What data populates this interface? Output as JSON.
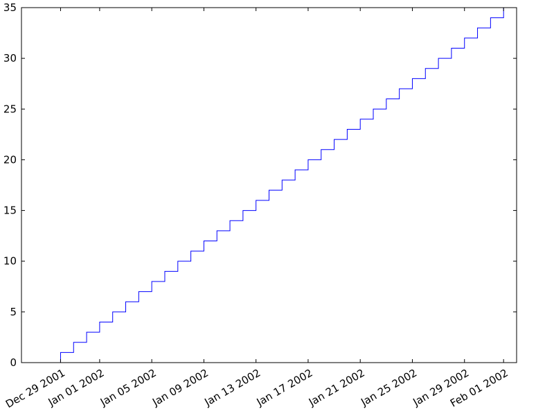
{
  "chart_data": {
    "type": "line",
    "step": "post",
    "xlabel": "",
    "ylabel": "",
    "title": "",
    "x_axis_type": "date",
    "xlim": [
      "2001-12-26",
      "2002-02-02"
    ],
    "ylim": [
      0,
      35
    ],
    "grid": false,
    "legend": "none",
    "line_color": "#0000ff",
    "x_ticks": [
      {
        "date": "2001-12-29",
        "label": "Dec 29 2001"
      },
      {
        "date": "2002-01-01",
        "label": "Jan 01 2002"
      },
      {
        "date": "2002-01-05",
        "label": "Jan 05 2002"
      },
      {
        "date": "2002-01-09",
        "label": "Jan 09 2002"
      },
      {
        "date": "2002-01-13",
        "label": "Jan 13 2002"
      },
      {
        "date": "2002-01-17",
        "label": "Jan 17 2002"
      },
      {
        "date": "2002-01-21",
        "label": "Jan 21 2002"
      },
      {
        "date": "2002-01-25",
        "label": "Jan 25 2002"
      },
      {
        "date": "2002-01-29",
        "label": "Jan 29 2002"
      },
      {
        "date": "2002-02-01",
        "label": "Feb 01 2002"
      }
    ],
    "y_ticks": [
      {
        "value": 0,
        "label": "0"
      },
      {
        "value": 5,
        "label": "5"
      },
      {
        "value": 10,
        "label": "10"
      },
      {
        "value": 15,
        "label": "15"
      },
      {
        "value": 20,
        "label": "20"
      },
      {
        "value": 25,
        "label": "25"
      },
      {
        "value": 30,
        "label": "30"
      },
      {
        "value": 35,
        "label": "35"
      }
    ],
    "series": [
      {
        "x": [
          "2001-12-28",
          "2001-12-29",
          "2001-12-30",
          "2001-12-31",
          "2002-01-01",
          "2002-01-02",
          "2002-01-03",
          "2002-01-04",
          "2002-01-05",
          "2002-01-06",
          "2002-01-07",
          "2002-01-08",
          "2002-01-09",
          "2002-01-10",
          "2002-01-11",
          "2002-01-12",
          "2002-01-13",
          "2002-01-14",
          "2002-01-15",
          "2002-01-16",
          "2002-01-17",
          "2002-01-18",
          "2002-01-19",
          "2002-01-20",
          "2002-01-21",
          "2002-01-22",
          "2002-01-23",
          "2002-01-24",
          "2002-01-25",
          "2002-01-26",
          "2002-01-27",
          "2002-01-28",
          "2002-01-29",
          "2002-01-30",
          "2002-01-31",
          "2002-02-01"
        ],
        "y": [
          0,
          1,
          2,
          3,
          4,
          5,
          6,
          7,
          8,
          9,
          10,
          11,
          12,
          13,
          14,
          15,
          16,
          17,
          18,
          19,
          20,
          21,
          22,
          23,
          24,
          25,
          26,
          27,
          28,
          29,
          30,
          31,
          32,
          33,
          34,
          35
        ]
      }
    ]
  }
}
